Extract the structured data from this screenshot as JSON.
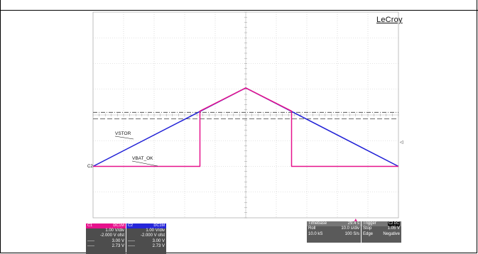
{
  "chart_data": {
    "type": "line",
    "title": "",
    "xlabel": "",
    "ylabel": "",
    "x_divisions": 10,
    "y_divisions": 8,
    "series": [
      {
        "name": "VSTOR",
        "color": "#1f1fd6",
        "points": [
          [
            0,
            -2.0
          ],
          [
            5.0,
            1.05
          ],
          [
            10.0,
            -2.0
          ]
        ]
      },
      {
        "name": "VBAT_OK",
        "color": "#e6128c",
        "points": [
          [
            0,
            -2.0
          ],
          [
            3.5,
            -2.0
          ],
          [
            3.5,
            0.15
          ],
          [
            5.0,
            1.05
          ],
          [
            6.5,
            0.15
          ],
          [
            6.5,
            -2.0
          ],
          [
            10.0,
            -2.0
          ]
        ]
      }
    ],
    "threshold_lines": [
      {
        "label": "3.00 V",
        "div": 0.1,
        "style": "dash-dot"
      },
      {
        "label": "2.73 V",
        "div": -0.15,
        "style": "dashed"
      }
    ],
    "trigger_marker_x_div": 8.6
  },
  "brand": "LeCroy",
  "markers": {
    "left": "C2",
    "right": "◁"
  },
  "trace_labels": {
    "vstor": "VSTOR",
    "vbat": "VBAT_OK"
  },
  "ch1": {
    "tag": "C1",
    "hdr": "DC1M",
    "vdiv": "1.00 V/div",
    "ofst": "-2.000 V ofst",
    "l1": "3.00 V",
    "l2": "2.73 V"
  },
  "ch2": {
    "tag": "C2",
    "hdr": "DC1M",
    "vdiv": "1.00 V/div",
    "ofst": "-2.000 V ofst",
    "l1": "3.00 V",
    "l2": "2.73 V"
  },
  "timebase": {
    "label": "Timebase",
    "delay": "29.4 s",
    "mode": "Roll",
    "sdiv": "10.0 s/div",
    "samples": "10.0 kS",
    "rate": "100 S/s"
  },
  "trigger": {
    "label": "Trigger",
    "badge": "C2 DC",
    "mode": "Stop",
    "level": "1.05 V",
    "type": "Edge",
    "slope": "Negative"
  }
}
